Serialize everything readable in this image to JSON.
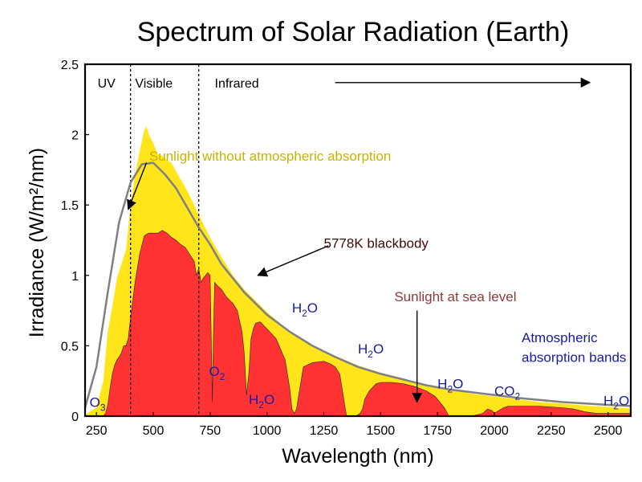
{
  "chart_data": {
    "type": "area",
    "title": "Spectrum of Solar Radiation (Earth)",
    "xlabel": "Wavelength (nm)",
    "ylabel": "Irradiance (W/m²/nm)",
    "xlim": [
      200,
      2600
    ],
    "ylim": [
      0,
      2.5
    ],
    "x_ticks": [
      250,
      500,
      750,
      1000,
      1250,
      1500,
      1750,
      2000,
      2250,
      2500
    ],
    "y_ticks": [
      0,
      0.5,
      1,
      1.5,
      2,
      2.5
    ],
    "y_tick_labels": [
      "0",
      "0.5",
      "1",
      "1.5",
      "2",
      "2.5"
    ],
    "grid": false,
    "regions": [
      {
        "label": "UV",
        "from": 200,
        "to": 400
      },
      {
        "label": "Visible",
        "from": 400,
        "to": 700
      },
      {
        "label": "Infrared",
        "from": 700,
        "to": 2600
      }
    ],
    "series": [
      {
        "name": "Sunlight without atmospheric absorption",
        "color": "#ffe51a",
        "x": [
          200,
          250,
          280,
          300,
          320,
          340,
          360,
          380,
          400,
          420,
          440,
          460,
          470,
          480,
          500,
          520,
          540,
          560,
          580,
          600,
          650,
          700,
          750,
          800,
          850,
          900,
          950,
          1000,
          1100,
          1200,
          1300,
          1400,
          1500,
          1600,
          1700,
          1800,
          1900,
          2000,
          2100,
          2200,
          2300,
          2400,
          2500,
          2600
        ],
        "y": [
          0.01,
          0.06,
          0.25,
          0.6,
          0.78,
          0.98,
          1.08,
          1.18,
          1.5,
          1.72,
          1.88,
          2.03,
          2.06,
          2.0,
          1.94,
          1.86,
          1.85,
          1.82,
          1.8,
          1.74,
          1.6,
          1.43,
          1.27,
          1.13,
          1.0,
          0.9,
          0.82,
          0.74,
          0.6,
          0.5,
          0.43,
          0.36,
          0.31,
          0.26,
          0.22,
          0.19,
          0.16,
          0.14,
          0.12,
          0.1,
          0.09,
          0.075,
          0.065,
          0.055
        ]
      },
      {
        "name": "Sunlight at sea level",
        "color": "#ff3333",
        "x": [
          200,
          280,
          290,
          300,
          310,
          320,
          330,
          340,
          350,
          360,
          370,
          380,
          390,
          400,
          420,
          440,
          460,
          480,
          500,
          520,
          540,
          560,
          580,
          600,
          620,
          640,
          660,
          680,
          690,
          700,
          710,
          720,
          730,
          740,
          750,
          760,
          762,
          765,
          770,
          780,
          800,
          820,
          850,
          870,
          890,
          900,
          910,
          920,
          930,
          940,
          950,
          970,
          1000,
          1040,
          1080,
          1100,
          1110,
          1120,
          1130,
          1140,
          1160,
          1200,
          1250,
          1280,
          1300,
          1320,
          1340,
          1350,
          1390,
          1410,
          1420,
          1430,
          1450,
          1480,
          1500,
          1550,
          1600,
          1650,
          1700,
          1740,
          1780,
          1800,
          1820,
          1850,
          1900,
          1950,
          1970,
          1990,
          2000,
          2020,
          2040,
          2060,
          2100,
          2200,
          2300,
          2350,
          2400,
          2450,
          2500,
          2600
        ],
        "y": [
          0,
          0,
          0.02,
          0.08,
          0.2,
          0.3,
          0.36,
          0.4,
          0.42,
          0.45,
          0.5,
          0.5,
          0.55,
          0.7,
          0.95,
          1.15,
          1.28,
          1.3,
          1.3,
          1.3,
          1.32,
          1.3,
          1.27,
          1.25,
          1.22,
          1.2,
          1.15,
          1.1,
          1.0,
          1.05,
          0.95,
          0.98,
          1.0,
          1.02,
          1.0,
          0.1,
          0.35,
          0.6,
          0.95,
          0.93,
          0.9,
          0.85,
          0.8,
          0.75,
          0.6,
          0.45,
          0.15,
          0.3,
          0.55,
          0.62,
          0.66,
          0.67,
          0.62,
          0.55,
          0.4,
          0.2,
          0.05,
          0.02,
          0.05,
          0.15,
          0.35,
          0.38,
          0.39,
          0.37,
          0.35,
          0.3,
          0.1,
          0.0,
          0.0,
          0.02,
          0.05,
          0.12,
          0.18,
          0.23,
          0.24,
          0.24,
          0.23,
          0.21,
          0.18,
          0.14,
          0.06,
          0.0,
          0.0,
          0.0,
          0.0,
          0.02,
          0.05,
          0.04,
          0.02,
          0.04,
          0.06,
          0.07,
          0.07,
          0.07,
          0.06,
          0.05,
          0.03,
          0.02,
          0.02,
          0.02
        ]
      },
      {
        "name": "5778K blackbody",
        "color": "#808080",
        "x": [
          200,
          250,
          300,
          350,
          400,
          450,
          500,
          550,
          600,
          650,
          700,
          750,
          800,
          900,
          1000,
          1100,
          1200,
          1300,
          1400,
          1500,
          1600,
          1700,
          1800,
          1900,
          2000,
          2100,
          2200,
          2300,
          2400,
          2500,
          2600
        ],
        "y": [
          0.06,
          0.35,
          0.88,
          1.38,
          1.66,
          1.79,
          1.8,
          1.72,
          1.62,
          1.48,
          1.34,
          1.22,
          1.08,
          0.88,
          0.72,
          0.6,
          0.5,
          0.42,
          0.35,
          0.3,
          0.26,
          0.22,
          0.19,
          0.17,
          0.15,
          0.13,
          0.115,
          0.1,
          0.09,
          0.08,
          0.072
        ]
      }
    ],
    "annotations": [
      {
        "text": "Sunlight without atmospheric absorption",
        "color": "#c8b400",
        "x": 482,
        "y": 1.85
      },
      {
        "text": "5778K blackbody",
        "color": "#3b0a0a",
        "x": 1250,
        "y": 1.23
      },
      {
        "text": "Sunlight at sea level",
        "color": "#8b3a3a",
        "x": 1560,
        "y": 0.85
      },
      {
        "text": "Atmospheric",
        "color": "#1a1aa6",
        "x": 2120,
        "y": 0.56
      },
      {
        "text": "absorption bands",
        "color": "#1a1aa6",
        "x": 2120,
        "y": 0.42
      }
    ],
    "absorption_labels": [
      {
        "base": "O",
        "sub": "3",
        "x": 220,
        "y": 0.1
      },
      {
        "base": "O",
        "sub": "2",
        "x": 745,
        "y": 0.32
      },
      {
        "base": "H",
        "sub": "2",
        "tail": "O",
        "x": 920,
        "y": 0.12
      },
      {
        "base": "H",
        "sub": "2",
        "tail": "O",
        "x": 1110,
        "y": 0.77
      },
      {
        "base": "H",
        "sub": "2",
        "tail": "O",
        "x": 1400,
        "y": 0.48
      },
      {
        "base": "H",
        "sub": "2",
        "tail": "O",
        "x": 1750,
        "y": 0.23
      },
      {
        "base": "CO",
        "sub": "2",
        "tail": "",
        "x": 2000,
        "y": 0.18
      },
      {
        "base": "H",
        "sub": "2",
        "tail": "O",
        "x": 2480,
        "y": 0.11
      }
    ],
    "arrows": [
      {
        "from": [
          1300,
          2.37
        ],
        "to": [
          2420,
          2.37
        ]
      },
      {
        "from": [
          470,
          1.8
        ],
        "to": [
          390,
          1.47
        ]
      },
      {
        "from": [
          1270,
          1.21
        ],
        "to": [
          960,
          1.0
        ]
      },
      {
        "from": [
          1660,
          0.75
        ],
        "to": [
          1660,
          0.1
        ]
      }
    ]
  }
}
